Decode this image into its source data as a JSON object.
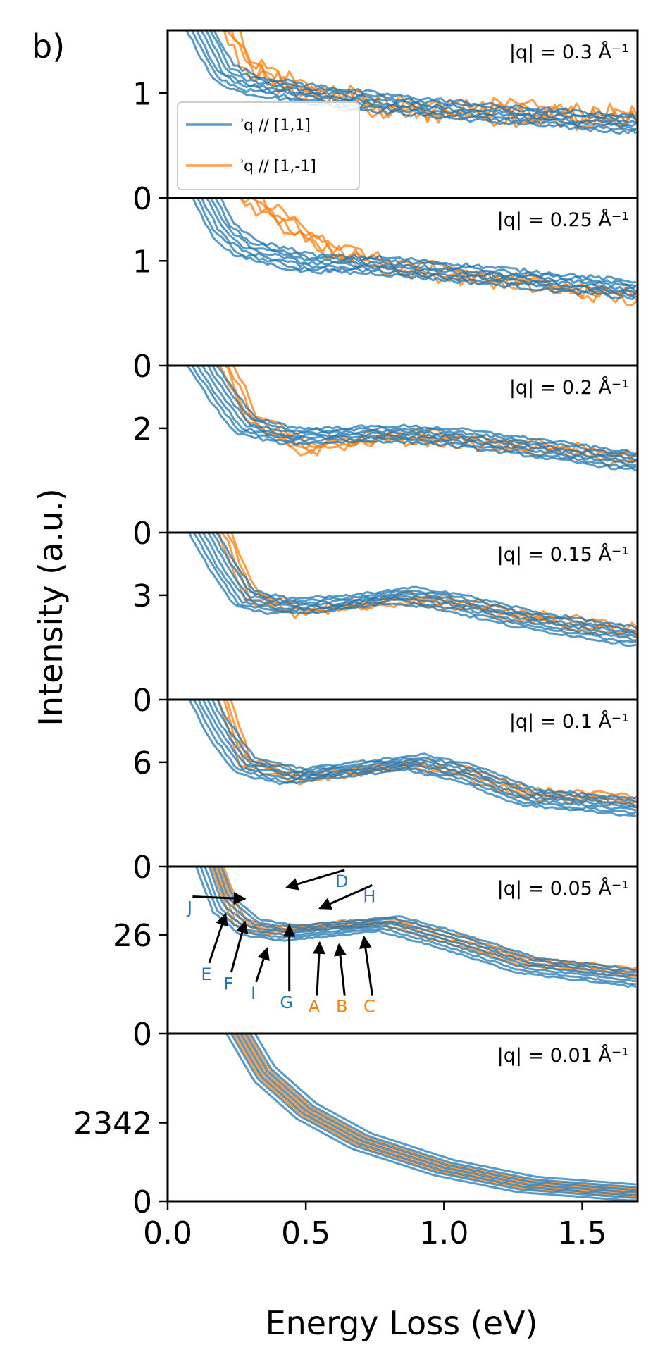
{
  "chart_data": {
    "type": "line",
    "panel_label": "b)",
    "xlabel": "Energy Loss (eV)",
    "ylabel": "Intensity (a.u.)",
    "xlim": [
      0.0,
      1.7
    ],
    "xticks": [
      0.0,
      0.5,
      1.0,
      1.5
    ],
    "xtick_labels": [
      "0.0",
      "0.5",
      "1.0",
      "1.5"
    ],
    "colors": {
      "blue": "#1f77b4",
      "orange": "#ff7f0e"
    },
    "legend": {
      "placement": "top-left of first panel",
      "entries": [
        {
          "label": "⃗q // [1,1]",
          "color": "#1f77b4"
        },
        {
          "label": "⃗q // [1,-1]",
          "color": "#ff7f0e"
        }
      ]
    },
    "panels": [
      {
        "q_label": "|q| = 0.3 Å⁻¹",
        "ylim": [
          0,
          1.6
        ],
        "yticks": [
          0,
          1
        ],
        "ytick_labels": [
          "0",
          "1"
        ],
        "blue_keys": [
          [
            0.1,
            1.7
          ],
          [
            0.2,
            1.2
          ],
          [
            0.3,
            1.08
          ],
          [
            0.5,
            1.0
          ],
          [
            0.8,
            0.9
          ],
          [
            1.2,
            0.8
          ],
          [
            1.7,
            0.7
          ]
        ],
        "orange_keys": [
          [
            0.2,
            1.7
          ],
          [
            0.3,
            1.25
          ],
          [
            0.5,
            1.02
          ],
          [
            0.8,
            0.85
          ],
          [
            1.2,
            0.82
          ],
          [
            1.7,
            0.75
          ]
        ],
        "noise_orange": 0.1,
        "noise_blue": 0.02
      },
      {
        "q_label": "|q| = 0.25 Å⁻¹",
        "ylim": [
          0,
          1.6
        ],
        "yticks": [
          0,
          1
        ],
        "ytick_labels": [
          "0",
          "1"
        ],
        "blue_keys": [
          [
            0.1,
            1.8
          ],
          [
            0.2,
            1.3
          ],
          [
            0.28,
            1.12
          ],
          [
            0.5,
            0.98
          ],
          [
            0.8,
            0.95
          ],
          [
            1.2,
            0.85
          ],
          [
            1.7,
            0.72
          ]
        ],
        "orange_keys": [
          [
            0.2,
            1.8
          ],
          [
            0.35,
            1.5
          ],
          [
            0.6,
            1.1
          ],
          [
            0.8,
            0.95
          ],
          [
            1.2,
            0.82
          ],
          [
            1.7,
            0.65
          ]
        ],
        "noise_orange": 0.06,
        "noise_blue": 0.02
      },
      {
        "q_label": "|q| = 0.2 Å⁻¹",
        "ylim": [
          0,
          3.2
        ],
        "yticks": [
          0,
          2
        ],
        "ytick_labels": [
          "0",
          "2"
        ],
        "blue_keys": [
          [
            0.1,
            3.4
          ],
          [
            0.2,
            2.6
          ],
          [
            0.28,
            2.05
          ],
          [
            0.45,
            1.85
          ],
          [
            0.8,
            1.9
          ],
          [
            1.0,
            1.85
          ],
          [
            1.3,
            1.65
          ],
          [
            1.7,
            1.35
          ]
        ],
        "orange_keys": [
          [
            0.2,
            3.4
          ],
          [
            0.3,
            2.2
          ],
          [
            0.5,
            1.6
          ],
          [
            0.8,
            1.85
          ],
          [
            1.0,
            1.8
          ],
          [
            1.3,
            1.65
          ],
          [
            1.7,
            1.4
          ]
        ],
        "noise_orange": 0.1,
        "noise_blue": 0.03
      },
      {
        "q_label": "|q| = 0.15 Å⁻¹",
        "ylim": [
          0,
          4.8
        ],
        "yticks": [
          0,
          3
        ],
        "ytick_labels": [
          "0",
          "3"
        ],
        "blue_keys": [
          [
            0.1,
            5.2
          ],
          [
            0.2,
            3.8
          ],
          [
            0.28,
            2.9
          ],
          [
            0.4,
            2.7
          ],
          [
            0.6,
            2.75
          ],
          [
            0.85,
            3.0
          ],
          [
            1.0,
            2.85
          ],
          [
            1.3,
            2.3
          ],
          [
            1.7,
            1.8
          ]
        ],
        "orange_keys": [
          [
            0.2,
            5.0
          ],
          [
            0.3,
            3.0
          ],
          [
            0.5,
            2.5
          ],
          [
            0.85,
            2.9
          ],
          [
            1.0,
            2.8
          ],
          [
            1.3,
            2.4
          ],
          [
            1.7,
            1.95
          ]
        ],
        "noise_orange": 0.12,
        "noise_blue": 0.04
      },
      {
        "q_label": "|q| = 0.1 Å⁻¹",
        "ylim": [
          0,
          9.6
        ],
        "yticks": [
          0,
          6
        ],
        "ytick_labels": [
          "0",
          "6"
        ],
        "blue_keys": [
          [
            0.1,
            10.5
          ],
          [
            0.18,
            8.0
          ],
          [
            0.28,
            5.8
          ],
          [
            0.45,
            5.2
          ],
          [
            0.6,
            5.5
          ],
          [
            0.9,
            6.0
          ],
          [
            1.1,
            5.3
          ],
          [
            1.3,
            4.0
          ],
          [
            1.7,
            3.4
          ]
        ],
        "orange_keys": [
          [
            0.2,
            10.0
          ],
          [
            0.28,
            6.0
          ],
          [
            0.5,
            5.1
          ],
          [
            0.9,
            5.9
          ],
          [
            1.1,
            5.3
          ],
          [
            1.3,
            4.2
          ],
          [
            1.7,
            3.8
          ]
        ],
        "noise_orange": 0.18,
        "noise_blue": 0.08
      },
      {
        "q_label": "|q| = 0.05 Å⁻¹",
        "ylim": [
          0,
          44
        ],
        "yticks": [
          0,
          26
        ],
        "ytick_labels": [
          "0",
          "26"
        ],
        "blue_keys": [
          [
            0.15,
            44
          ],
          [
            0.2,
            34
          ],
          [
            0.3,
            28
          ],
          [
            0.45,
            26.5
          ],
          [
            0.6,
            27.5
          ],
          [
            0.8,
            29
          ],
          [
            1.0,
            25
          ],
          [
            1.3,
            18
          ],
          [
            1.7,
            14.5
          ]
        ],
        "orange_keys": [
          [
            0.18,
            44
          ],
          [
            0.25,
            30
          ],
          [
            0.35,
            27
          ],
          [
            0.6,
            28.5
          ],
          [
            0.8,
            29.5
          ],
          [
            1.0,
            25.5
          ],
          [
            1.3,
            19
          ],
          [
            1.7,
            16
          ]
        ],
        "noise_orange": 0.3,
        "noise_blue": 0.2,
        "annotations": [
          {
            "text": "J",
            "color": "#1f77b4",
            "tx": 0.08,
            "ty": 33.5,
            "ax": 0.28,
            "ay": 35.5
          },
          {
            "text": "D",
            "color": "#1f77b4",
            "tx": 0.63,
            "ty": 40.5,
            "ax": 0.43,
            "ay": 38.5
          },
          {
            "text": "H",
            "color": "#1f77b4",
            "tx": 0.73,
            "ty": 36.5,
            "ax": 0.55,
            "ay": 33.0
          },
          {
            "text": "E",
            "color": "#1f77b4",
            "tx": 0.14,
            "ty": 16.0,
            "ax": 0.21,
            "ay": 31.5
          },
          {
            "text": "F",
            "color": "#1f77b4",
            "tx": 0.22,
            "ty": 13.5,
            "ax": 0.28,
            "ay": 29.5
          },
          {
            "text": "I",
            "color": "#1f77b4",
            "tx": 0.31,
            "ty": 11.0,
            "ax": 0.36,
            "ay": 22.5
          },
          {
            "text": "G",
            "color": "#1f77b4",
            "tx": 0.43,
            "ty": 8.5,
            "ax": 0.44,
            "ay": 28.5
          },
          {
            "text": "A",
            "color": "#ff7f0e",
            "tx": 0.53,
            "ty": 7.5,
            "ax": 0.55,
            "ay": 24.0
          },
          {
            "text": "B",
            "color": "#ff7f0e",
            "tx": 0.63,
            "ty": 7.5,
            "ax": 0.62,
            "ay": 23.5
          },
          {
            "text": "C",
            "color": "#ff7f0e",
            "tx": 0.73,
            "ty": 7.5,
            "ax": 0.71,
            "ay": 25.5
          }
        ]
      },
      {
        "q_label": "|q| = 0.01 Å⁻¹",
        "ylim": [
          0,
          5000
        ],
        "yticks": [
          0,
          2342
        ],
        "ytick_labels": [
          "0",
          "2342"
        ],
        "blue_keys": [
          [
            0.25,
            5200
          ],
          [
            0.35,
            3800
          ],
          [
            0.5,
            2700
          ],
          [
            0.7,
            1800
          ],
          [
            1.0,
            1000
          ],
          [
            1.3,
            500
          ],
          [
            1.7,
            250
          ]
        ],
        "orange_keys": [
          [
            0.25,
            5200
          ],
          [
            0.35,
            3800
          ],
          [
            0.5,
            2700
          ],
          [
            0.7,
            1800
          ],
          [
            1.0,
            1000
          ],
          [
            1.3,
            500
          ],
          [
            1.7,
            250
          ]
        ],
        "noise_orange": 5,
        "noise_blue": 3
      }
    ]
  }
}
